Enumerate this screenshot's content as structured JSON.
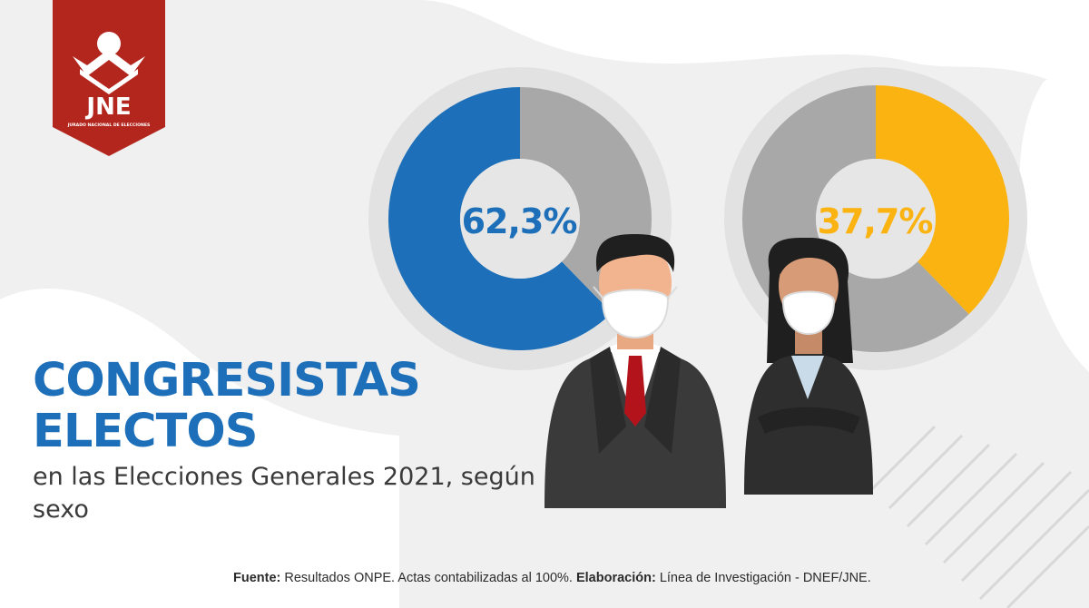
{
  "colors": {
    "male": "#1c6fb8",
    "female": "#fbb312",
    "rest": "#a8a8a8",
    "ring": "#e2e2e2",
    "title": "#1c6fb8",
    "logo_red": "#b3261e"
  },
  "logo": {
    "text": "JNE",
    "subtitle": "JURADO NACIONAL DE ELECCIONES"
  },
  "chart_data": [
    {
      "type": "pie",
      "style": "donut",
      "label": "62,3%",
      "slices": [
        {
          "value": 62.3
        },
        {
          "value": 37.7
        }
      ],
      "figure": "man-icon"
    },
    {
      "type": "pie",
      "style": "donut",
      "label": "37,7%",
      "slices": [
        {
          "value": 37.7
        },
        {
          "value": 62.3
        }
      ],
      "figure": "woman-icon"
    }
  ],
  "title": {
    "line1": "CONGRESISTAS",
    "line2": "ELECTOS"
  },
  "subtitle": "en las Elecciones Generales 2021, según sexo",
  "footer": {
    "source_label": "Fuente:",
    "source_text": " Resultados ONPE. Actas contabilizadas al 100%. ",
    "credit_label": "Elaboración:",
    "credit_text": " Línea de Investigación - DNEF/JNE."
  }
}
